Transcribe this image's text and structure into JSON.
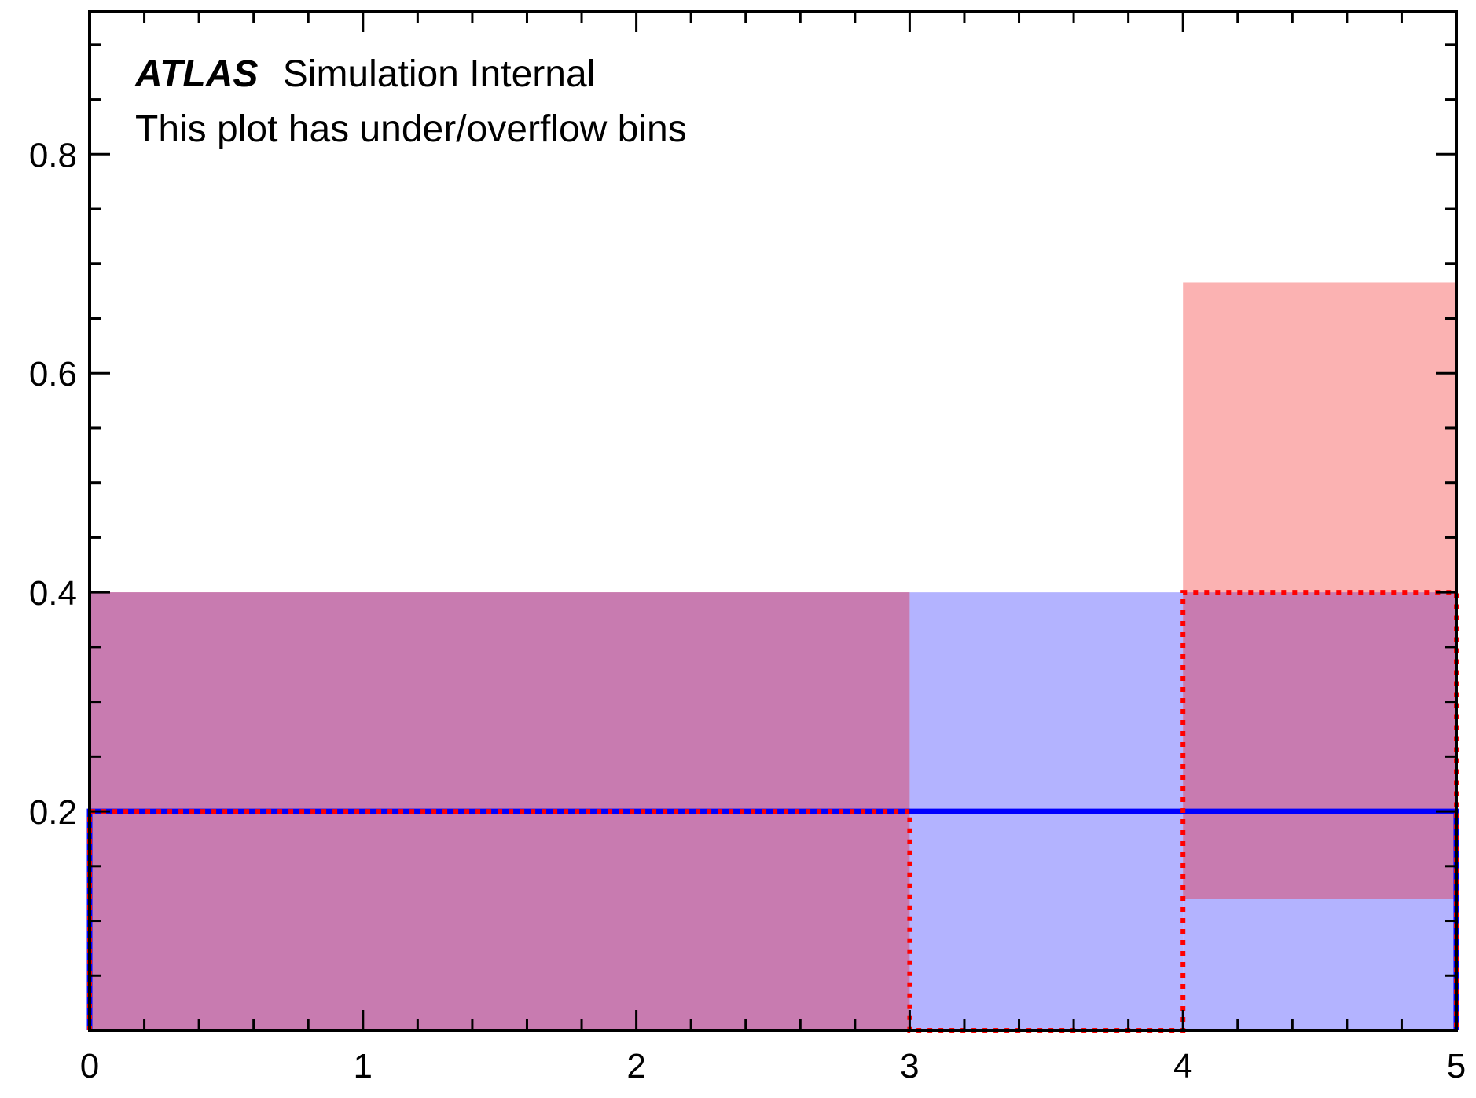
{
  "chart_data": {
    "type": "bar",
    "annotations": {
      "experiment": "ATLAS",
      "status": "Simulation Internal",
      "note": "This plot has under/overflow bins"
    },
    "xlim": [
      0,
      5
    ],
    "ylim": [
      0,
      0.93
    ],
    "x_ticks": [
      "0",
      "1",
      "2",
      "3",
      "4",
      "5"
    ],
    "y_ticks": [
      "0.2",
      "0.4",
      "0.6",
      "0.8"
    ],
    "bin_edges": [
      0,
      3,
      4,
      5
    ],
    "series": [
      {
        "style": "solid",
        "color": "#0000ff",
        "values": [
          0.2,
          0.2,
          0.2
        ],
        "band_low": [
          0.0,
          0.0,
          0.0
        ],
        "band_high": [
          0.4,
          0.4,
          0.4
        ],
        "band_color": "#b3b3ff"
      },
      {
        "style": "dotted",
        "color": "#ff0000",
        "values": [
          0.2,
          0.0,
          0.4
        ],
        "band_low": [
          0.0,
          0.0,
          0.12
        ],
        "band_high": [
          0.4,
          0.0,
          0.683
        ],
        "band_color": "#fbb2b2"
      }
    ],
    "overlap_color": "#c87bb0",
    "grid": false,
    "legend": "none"
  }
}
